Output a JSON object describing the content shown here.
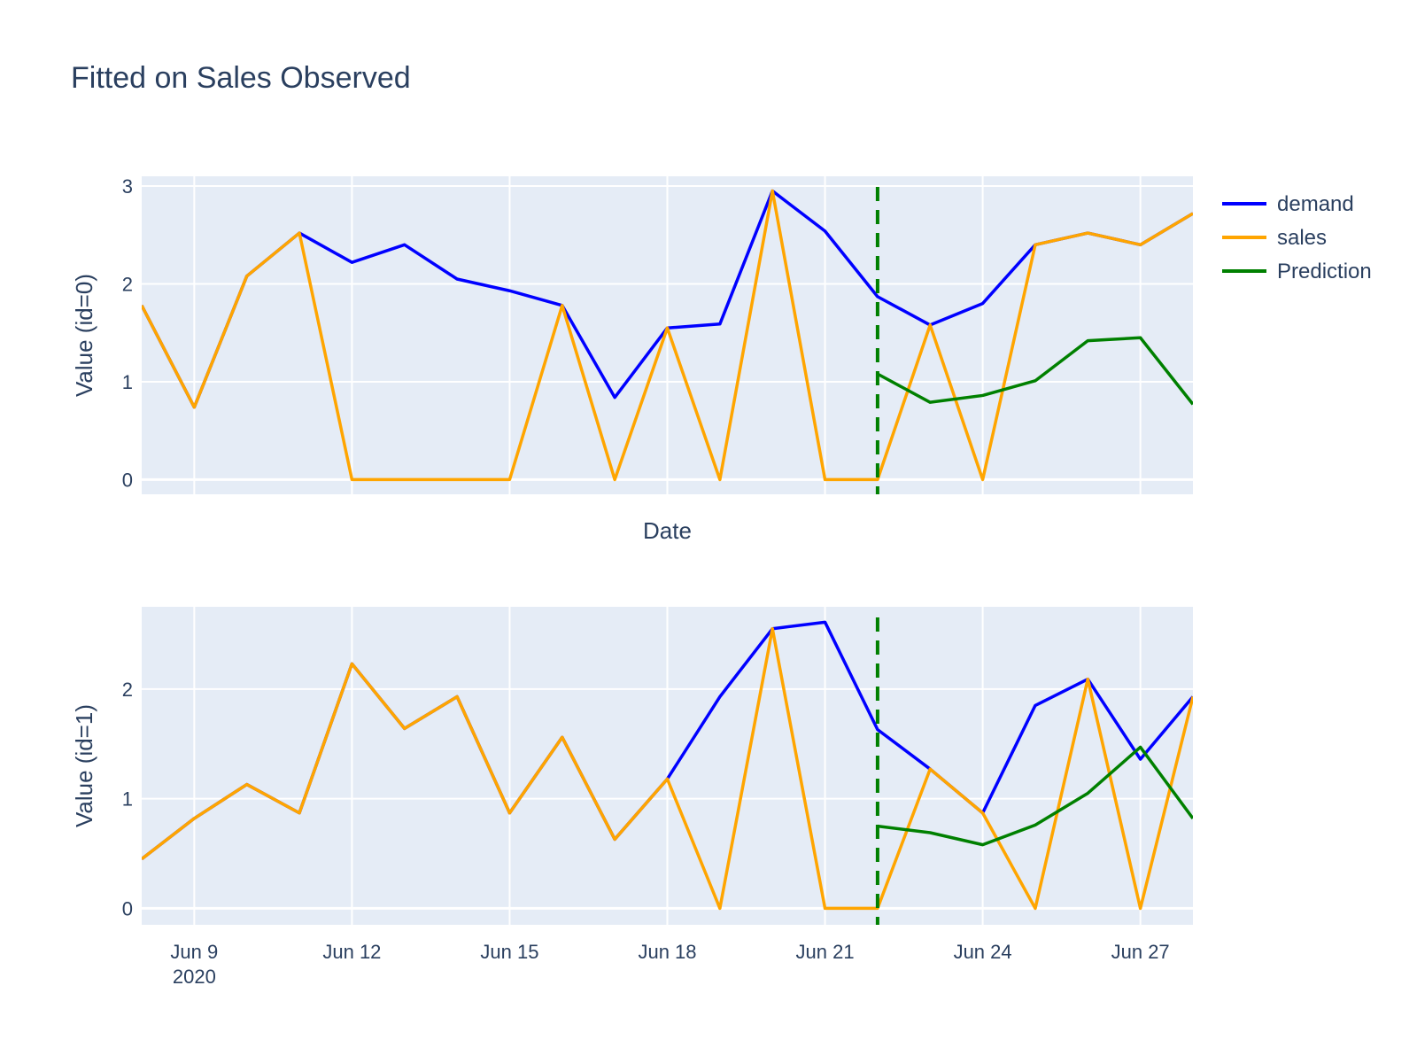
{
  "chart_data": {
    "type": "line",
    "title": "Fitted on Sales Observed",
    "colors": {
      "demand": "#0000ff",
      "sales": "#ffa500",
      "Prediction": "#008000",
      "plot_bg": "#e5ecf6",
      "grid": "#ffffff",
      "text": "#2a3f5f"
    },
    "legend": {
      "placement": "top-right",
      "entries": [
        "demand",
        "sales",
        "Prediction"
      ]
    },
    "x": [
      "2020-06-08",
      "2020-06-09",
      "2020-06-10",
      "2020-06-11",
      "2020-06-12",
      "2020-06-13",
      "2020-06-14",
      "2020-06-15",
      "2020-06-16",
      "2020-06-17",
      "2020-06-18",
      "2020-06-19",
      "2020-06-20",
      "2020-06-21",
      "2020-06-22",
      "2020-06-23",
      "2020-06-24",
      "2020-06-25",
      "2020-06-26",
      "2020-06-27",
      "2020-06-28"
    ],
    "xrange": [
      "2020-06-08",
      "2020-06-28"
    ],
    "x_ticks": [
      {
        "date": "2020-06-09",
        "label": "Jun 9",
        "sublabel": "2020"
      },
      {
        "date": "2020-06-12",
        "label": "Jun 12"
      },
      {
        "date": "2020-06-15",
        "label": "Jun 15"
      },
      {
        "date": "2020-06-18",
        "label": "Jun 18"
      },
      {
        "date": "2020-06-21",
        "label": "Jun 21"
      },
      {
        "date": "2020-06-24",
        "label": "Jun 24"
      },
      {
        "date": "2020-06-27",
        "label": "Jun 27"
      }
    ],
    "prediction_start": "2020-06-22",
    "panels": [
      {
        "ylabel": "Value (id=0)",
        "xlabel": "Date",
        "ylim": [
          -0.15,
          3.1
        ],
        "yticks": [
          0,
          1,
          2,
          3
        ],
        "series": [
          {
            "name": "demand",
            "values": [
              1.78,
              0.74,
              2.08,
              2.52,
              2.22,
              2.4,
              2.05,
              1.93,
              1.78,
              0.84,
              1.55,
              1.59,
              2.95,
              2.54,
              1.87,
              1.58,
              1.8,
              2.4,
              2.52,
              2.4,
              2.72
            ]
          },
          {
            "name": "sales",
            "values": [
              1.78,
              0.74,
              2.08,
              2.52,
              0,
              0,
              0,
              0,
              1.78,
              0,
              1.55,
              0,
              2.95,
              0,
              0,
              1.58,
              0,
              2.4,
              2.52,
              2.4,
              2.72
            ]
          },
          {
            "name": "Prediction",
            "x": [
              "2020-06-22",
              "2020-06-23",
              "2020-06-24",
              "2020-06-25",
              "2020-06-26",
              "2020-06-27",
              "2020-06-28"
            ],
            "values": [
              1.08,
              0.79,
              0.86,
              1.01,
              1.42,
              1.45,
              0.77
            ]
          }
        ]
      },
      {
        "ylabel": "Value (id=1)",
        "xlabel": "",
        "ylim": [
          -0.15,
          2.75
        ],
        "yticks": [
          0,
          1,
          2
        ],
        "series": [
          {
            "name": "demand",
            "values": [
              0.45,
              0.82,
              1.13,
              0.87,
              2.23,
              1.64,
              1.93,
              0.87,
              1.56,
              0.63,
              1.18,
              1.93,
              2.55,
              2.61,
              1.63,
              1.27,
              0.87,
              1.85,
              2.09,
              1.36,
              1.93
            ]
          },
          {
            "name": "sales",
            "values": [
              0.45,
              0.82,
              1.13,
              0.87,
              2.23,
              1.64,
              1.93,
              0.87,
              1.56,
              0.63,
              1.18,
              0,
              2.55,
              0,
              0,
              1.27,
              0.87,
              0,
              2.09,
              0,
              1.93
            ]
          },
          {
            "name": "Prediction",
            "x": [
              "2020-06-22",
              "2020-06-23",
              "2020-06-24",
              "2020-06-25",
              "2020-06-26",
              "2020-06-27",
              "2020-06-28"
            ],
            "values": [
              0.75,
              0.69,
              0.58,
              0.76,
              1.05,
              1.47,
              0.82
            ]
          }
        ]
      }
    ]
  }
}
